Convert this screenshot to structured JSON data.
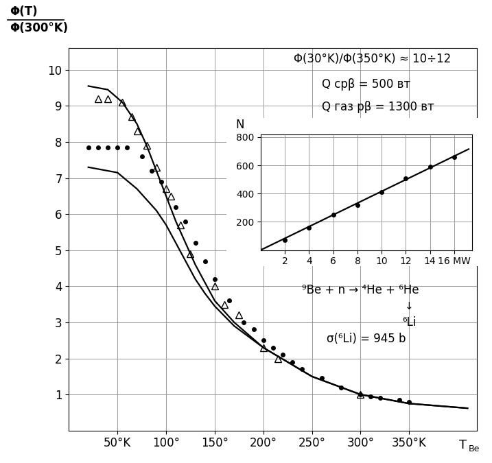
{
  "chart_data": [
    {
      "type": "line",
      "ylabel": {
        "numerator": "Φ(T)",
        "denominator": "Φ(300°K)"
      },
      "xlabel": {
        "text": "T",
        "subscript": "Be"
      },
      "xlim": [
        0,
        420
      ],
      "ylim": [
        0,
        10.6
      ],
      "xticks": [
        {
          "value": 50,
          "label": "50°K"
        },
        {
          "value": 100,
          "label": "100°"
        },
        {
          "value": 150,
          "label": "150°"
        },
        {
          "value": 200,
          "label": "200°"
        },
        {
          "value": 250,
          "label": "250°"
        },
        {
          "value": 300,
          "label": "300°"
        },
        {
          "value": 350,
          "label": "350°K"
        }
      ],
      "yticks": [
        1,
        2,
        3,
        4,
        5,
        6,
        7,
        8,
        9,
        10
      ],
      "grid": true,
      "annotations": {
        "ratio": "Φ(30°K)/Φ(350°K) ≈ 10÷12",
        "q1": "Q срβ = 500 вт",
        "q2": "Q газ рβ = 1300 вт",
        "reaction": "⁹Be + n → ⁴He + ⁶He",
        "decay_arrow": "↓",
        "decay_product": "⁶Li",
        "cross_section": "σ(⁶Li) = 945 b"
      },
      "series": [
        {
          "color": "#000000",
          "marker": "none",
          "line_style": "solid",
          "x": [
            20,
            40,
            55,
            70,
            80,
            90,
            100,
            110,
            120,
            130,
            140,
            150,
            170,
            200,
            250,
            300,
            350,
            410
          ],
          "values": [
            9.55,
            9.45,
            9.1,
            8.5,
            7.9,
            7.2,
            6.5,
            5.8,
            5.2,
            4.6,
            4.1,
            3.6,
            3.0,
            2.3,
            1.5,
            1.0,
            0.75,
            0.62
          ]
        },
        {
          "color": "#000000",
          "marker": "none",
          "line_style": "solid",
          "x": [
            20,
            50,
            70,
            90,
            100,
            110,
            120,
            130,
            140,
            150,
            170,
            200,
            250,
            300,
            350,
            410
          ],
          "values": [
            7.3,
            7.15,
            6.7,
            6.1,
            5.7,
            5.2,
            4.7,
            4.2,
            3.8,
            3.45,
            2.9,
            2.3,
            1.5,
            1.0,
            0.75,
            0.62
          ]
        },
        {
          "color": "#000000",
          "marker": "triangle",
          "line_style": "none",
          "x": [
            30,
            40,
            55,
            65,
            70,
            80,
            90,
            100,
            105,
            115,
            125,
            150,
            160,
            175,
            200,
            215,
            300
          ],
          "values": [
            9.2,
            9.2,
            9.1,
            8.7,
            8.3,
            7.9,
            7.3,
            6.7,
            6.5,
            5.7,
            4.9,
            4.0,
            3.5,
            3.2,
            2.3,
            2.0,
            1.0
          ]
        },
        {
          "color": "#000000",
          "marker": "dot",
          "line_style": "none",
          "x": [
            20,
            30,
            40,
            50,
            60,
            75,
            85,
            95,
            110,
            120,
            130,
            140,
            150,
            165,
            180,
            190,
            200,
            210,
            220,
            230,
            240,
            260,
            280,
            300,
            310,
            320,
            340,
            350
          ],
          "values": [
            7.85,
            7.85,
            7.85,
            7.85,
            7.85,
            7.6,
            7.2,
            6.9,
            6.2,
            5.8,
            5.2,
            4.7,
            4.2,
            3.6,
            3.0,
            2.8,
            2.5,
            2.3,
            2.1,
            1.9,
            1.7,
            1.45,
            1.2,
            1.0,
            0.95,
            0.9,
            0.85,
            0.8
          ]
        }
      ]
    },
    {
      "type": "line",
      "ylabel": "N",
      "xlim": [
        0,
        17.5
      ],
      "ylim": [
        0,
        820
      ],
      "xticks": [
        2,
        4,
        6,
        8,
        10,
        12,
        14,
        {
          "value": 16,
          "label": "16 MW"
        }
      ],
      "yticks": [
        200,
        400,
        600,
        800
      ],
      "grid": true,
      "series": [
        {
          "color": "#000000",
          "marker": "none",
          "line_style": "solid",
          "x": [
            0,
            17.2
          ],
          "values": [
            0,
            715
          ]
        },
        {
          "color": "#000000",
          "marker": "dot",
          "line_style": "none",
          "x": [
            2,
            4,
            6,
            8,
            10,
            12,
            14,
            16
          ],
          "values": [
            70,
            160,
            250,
            320,
            410,
            510,
            590,
            660
          ]
        }
      ]
    }
  ]
}
